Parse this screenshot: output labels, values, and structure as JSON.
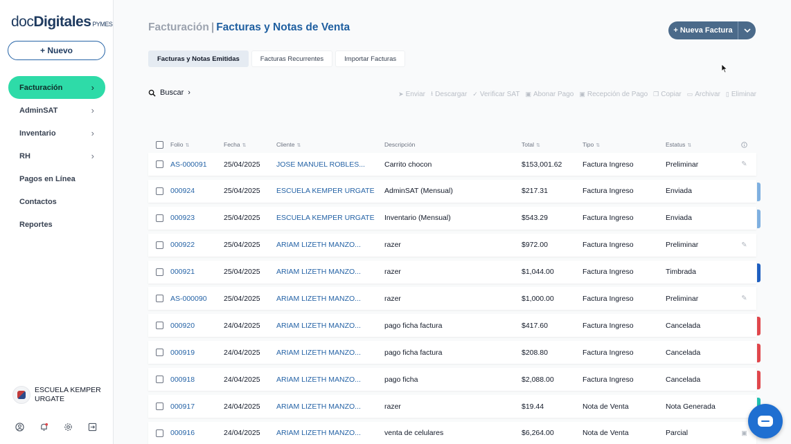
{
  "sidebar": {
    "logo": {
      "part1": "doc",
      "part2": "Digitales",
      "suffix": "PYMES"
    },
    "new_button": "+ Nuevo",
    "nav": [
      {
        "label": "Facturación",
        "active": true,
        "chevron": true
      },
      {
        "label": "AdminSAT",
        "active": false,
        "chevron": true
      },
      {
        "label": "Inventario",
        "active": false,
        "chevron": true
      },
      {
        "label": "RH",
        "active": false,
        "chevron": true
      },
      {
        "label": "Pagos en Línea",
        "active": false,
        "chevron": false
      },
      {
        "label": "Contactos",
        "active": false,
        "chevron": false
      },
      {
        "label": "Reportes",
        "active": false,
        "chevron": false
      }
    ],
    "company": "ESCUELA KEMPER URGATE",
    "bottom_icons": [
      "user-icon",
      "bell-icon",
      "gear-icon",
      "logout-icon"
    ]
  },
  "header": {
    "breadcrumb": "Facturación",
    "separator": "|",
    "title": "Facturas y Notas de Venta",
    "primary_action": "+ Nueva Factura"
  },
  "tabs": [
    {
      "label": "Facturas y Notas Emitidas",
      "active": true
    },
    {
      "label": "Facturas Recurrentes",
      "active": false
    },
    {
      "label": "Importar Facturas",
      "active": false
    }
  ],
  "search": {
    "label": "Buscar"
  },
  "toolbar": [
    {
      "label": "Enviar",
      "icon": "send-icon",
      "glyph": "➤"
    },
    {
      "label": "Descargar",
      "icon": "download-icon",
      "glyph": "⭳"
    },
    {
      "label": "Verificar SAT",
      "icon": "shield-check-icon",
      "glyph": "✓"
    },
    {
      "label": "Abonar Pago",
      "icon": "money-icon",
      "glyph": "▣"
    },
    {
      "label": "Recepción de Pago",
      "icon": "money-icon",
      "glyph": "▣"
    },
    {
      "label": "Copiar",
      "icon": "copy-icon",
      "glyph": "❐"
    },
    {
      "label": "Archivar",
      "icon": "folder-icon",
      "glyph": "▭"
    },
    {
      "label": "Eliminar",
      "icon": "trash-icon",
      "glyph": "▯"
    }
  ],
  "table": {
    "columns": [
      "Folio",
      "Fecha",
      "Cliente",
      "Descripción",
      "Total",
      "Tipo",
      "Estatus"
    ],
    "rows": [
      {
        "folio": "AS-000091",
        "fecha": "25/04/2025",
        "cliente": "JOSE MANUEL ROBLES...",
        "descripcion": "Carrito chocon",
        "total": "$153,001.62",
        "tipo": "Factura Ingreso",
        "estatus": "Preliminar",
        "action": "edit",
        "stripe": ""
      },
      {
        "folio": "000924",
        "fecha": "25/04/2025",
        "cliente": "ESCUELA KEMPER URGATE",
        "descripcion": "AdminSAT (Mensual)",
        "total": "$217.31",
        "tipo": "Factura Ingreso",
        "estatus": "Enviada",
        "action": "",
        "stripe": "#7fb0e0"
      },
      {
        "folio": "000923",
        "fecha": "25/04/2025",
        "cliente": "ESCUELA KEMPER URGATE",
        "descripcion": "Inventario (Mensual)",
        "total": "$543.29",
        "tipo": "Factura Ingreso",
        "estatus": "Enviada",
        "action": "",
        "stripe": "#7fb0e0"
      },
      {
        "folio": "000922",
        "fecha": "25/04/2025",
        "cliente": "ARIAM LIZETH MANZO...",
        "descripcion": "razer",
        "total": "$972.00",
        "tipo": "Factura Ingreso",
        "estatus": "Preliminar",
        "action": "edit",
        "stripe": ""
      },
      {
        "folio": "000921",
        "fecha": "25/04/2025",
        "cliente": "ARIAM LIZETH MANZO...",
        "descripcion": "razer",
        "total": "$1,044.00",
        "tipo": "Factura Ingreso",
        "estatus": "Timbrada",
        "action": "",
        "stripe": "#1f5fc0"
      },
      {
        "folio": "AS-000090",
        "fecha": "25/04/2025",
        "cliente": "ARIAM LIZETH MANZO...",
        "descripcion": "razer",
        "total": "$1,000.00",
        "tipo": "Factura Ingreso",
        "estatus": "Preliminar",
        "action": "edit",
        "stripe": ""
      },
      {
        "folio": "000920",
        "fecha": "24/04/2025",
        "cliente": "ARIAM LIZETH MANZO...",
        "descripcion": "pago ficha factura",
        "total": "$417.60",
        "tipo": "Factura Ingreso",
        "estatus": "Cancelada",
        "action": "",
        "stripe": "#e0474c"
      },
      {
        "folio": "000919",
        "fecha": "24/04/2025",
        "cliente": "ARIAM LIZETH MANZO...",
        "descripcion": "pago ficha factura",
        "total": "$208.80",
        "tipo": "Factura Ingreso",
        "estatus": "Cancelada",
        "action": "",
        "stripe": "#e0474c"
      },
      {
        "folio": "000918",
        "fecha": "24/04/2025",
        "cliente": "ARIAM LIZETH MANZO...",
        "descripcion": "pago ficha",
        "total": "$2,088.00",
        "tipo": "Factura Ingreso",
        "estatus": "Cancelada",
        "action": "",
        "stripe": "#e0474c"
      },
      {
        "folio": "000917",
        "fecha": "24/04/2025",
        "cliente": "ARIAM LIZETH MANZO...",
        "descripcion": "razer",
        "total": "$19.44",
        "tipo": "Nota de Venta",
        "estatus": "Nota Generada",
        "action": "",
        "stripe": "#22c1b0"
      },
      {
        "folio": "000916",
        "fecha": "24/04/2025",
        "cliente": "ARIAM LIZETH MANZO...",
        "descripcion": "venta de celulares",
        "total": "$6,264.00",
        "tipo": "Nota de Venta",
        "estatus": "Parcial",
        "action": "doc",
        "stripe": ""
      }
    ]
  },
  "colors": {
    "accent": "#2edba8",
    "link": "#2563a6",
    "primary_button": "#4b6a8a",
    "chat": "#1f6fd1"
  }
}
